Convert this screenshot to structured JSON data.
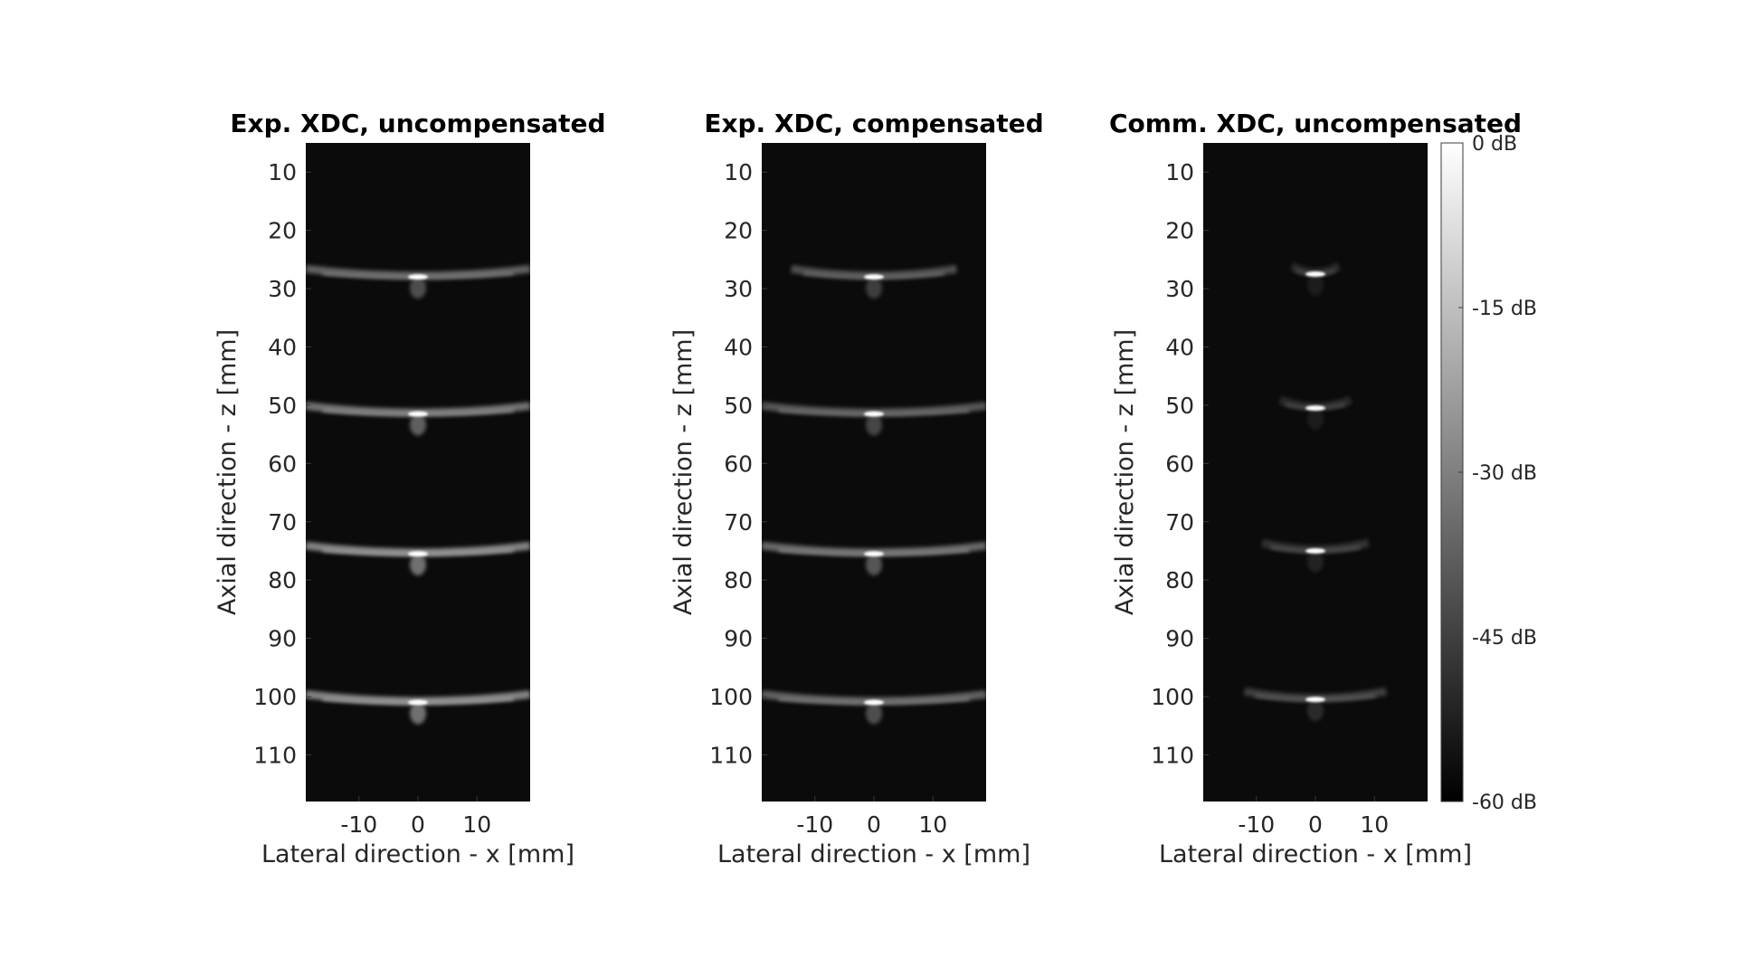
{
  "chart_data": [
    {
      "type": "heatmap",
      "title": "Exp. XDC, uncompensated",
      "xlabel": "Lateral direction - x [mm]",
      "ylabel": "Axial direction - z [mm]",
      "xlim": [
        -19,
        19
      ],
      "ylim": [
        5,
        118
      ],
      "y_reversed": true,
      "xticks": [
        -10,
        0,
        10
      ],
      "yticks": [
        10,
        20,
        30,
        40,
        50,
        60,
        70,
        80,
        90,
        100,
        110
      ],
      "grid": false,
      "colormap": "gray",
      "background_color": "#0b0b0b",
      "reflectors": [
        {
          "x": 0,
          "z": 28,
          "peak_db": 0,
          "lateral_spread_mm": 19,
          "artifact_db": -38
        },
        {
          "x": 0,
          "z": 51.5,
          "peak_db": 0,
          "lateral_spread_mm": 19,
          "artifact_db": -34
        },
        {
          "x": 0,
          "z": 75.5,
          "peak_db": 0,
          "lateral_spread_mm": 19,
          "artifact_db": -30
        },
        {
          "x": 0,
          "z": 101,
          "peak_db": 0,
          "lateral_spread_mm": 19,
          "artifact_db": -30
        }
      ]
    },
    {
      "type": "heatmap",
      "title": "Exp. XDC, compensated",
      "xlabel": "Lateral direction - x [mm]",
      "ylabel": "Axial direction - z [mm]",
      "xlim": [
        -19,
        19
      ],
      "ylim": [
        5,
        118
      ],
      "y_reversed": true,
      "xticks": [
        -10,
        0,
        10
      ],
      "yticks": [
        10,
        20,
        30,
        40,
        50,
        60,
        70,
        80,
        90,
        100,
        110
      ],
      "grid": false,
      "colormap": "gray",
      "background_color": "#0b0b0b",
      "reflectors": [
        {
          "x": 0,
          "z": 28,
          "peak_db": 0,
          "lateral_spread_mm": 14,
          "artifact_db": -42
        },
        {
          "x": 0,
          "z": 51.5,
          "peak_db": 0,
          "lateral_spread_mm": 19,
          "artifact_db": -40
        },
        {
          "x": 0,
          "z": 75.5,
          "peak_db": 0,
          "lateral_spread_mm": 19,
          "artifact_db": -36
        },
        {
          "x": 0,
          "z": 101,
          "peak_db": 0,
          "lateral_spread_mm": 19,
          "artifact_db": -38
        }
      ]
    },
    {
      "type": "heatmap",
      "title": "Comm. XDC, uncompensated",
      "xlabel": "Lateral direction - x [mm]",
      "ylabel": "Axial direction - z [mm]",
      "xlim": [
        -19,
        19
      ],
      "ylim": [
        5,
        118
      ],
      "y_reversed": true,
      "xticks": [
        -10,
        0,
        10
      ],
      "yticks": [
        10,
        20,
        30,
        40,
        50,
        60,
        70,
        80,
        90,
        100,
        110
      ],
      "grid": false,
      "colormap": "gray",
      "background_color": "#0b0b0b",
      "reflectors": [
        {
          "x": 0,
          "z": 27.5,
          "peak_db": 0,
          "lateral_spread_mm": 4,
          "artifact_db": -50
        },
        {
          "x": 0,
          "z": 50.5,
          "peak_db": 0,
          "lateral_spread_mm": 6,
          "artifact_db": -50
        },
        {
          "x": 0,
          "z": 75,
          "peak_db": 0,
          "lateral_spread_mm": 9,
          "artifact_db": -48
        },
        {
          "x": 0,
          "z": 100.5,
          "peak_db": 0,
          "lateral_spread_mm": 12,
          "artifact_db": -46
        }
      ]
    }
  ],
  "colorbar": {
    "range_db": [
      -60,
      0
    ],
    "ticks": [
      {
        "value": 0,
        "label": "0 dB"
      },
      {
        "value": -15,
        "label": "-15 dB"
      },
      {
        "value": -30,
        "label": "-30 dB"
      },
      {
        "value": -45,
        "label": "-45 dB"
      },
      {
        "value": -60,
        "label": "-60 dB"
      }
    ]
  }
}
